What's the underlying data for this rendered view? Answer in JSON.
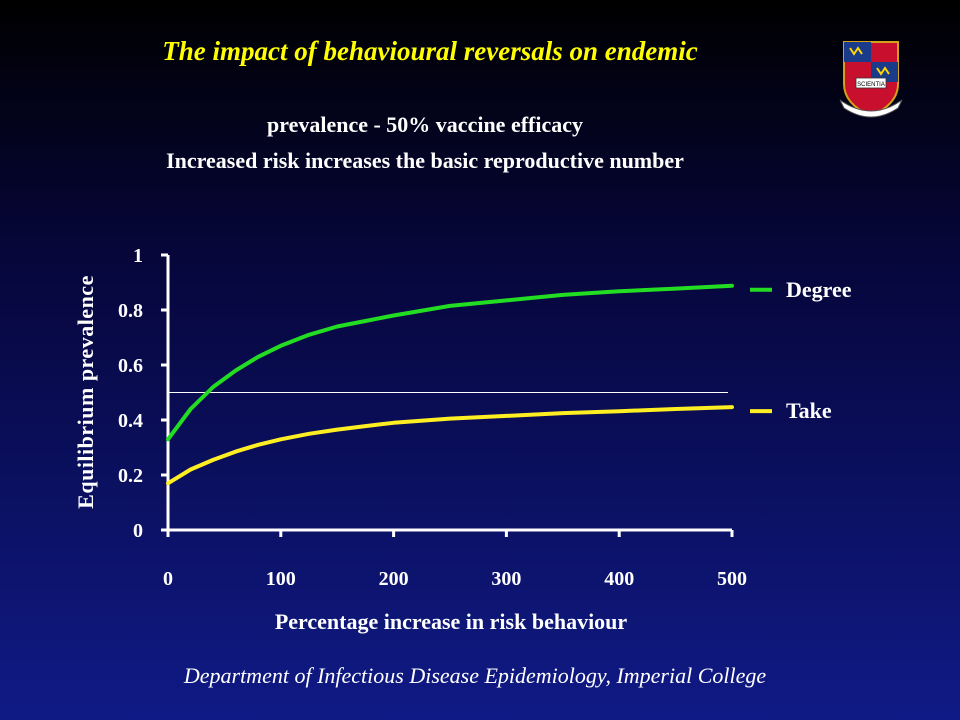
{
  "title": "The impact of behavioural reversals on endemic",
  "subtitle_line1": "prevalence - 50% vaccine efficacy",
  "subtitle_line2": "Increased risk increases the basic reproductive number",
  "footer": "Department of Infectious Disease Epidemiology, Imperial College",
  "crest_icon": "imperial-college-crest",
  "crest_motto": "SCIENTIA",
  "colors": {
    "title": "#ffff00",
    "degree": "#22dd22",
    "take": "#ffee22",
    "text": "#ffffff"
  },
  "chart_data": {
    "type": "line",
    "title": "",
    "xlabel": "Percentage increase in risk behaviour",
    "ylabel": "Equilibrium prevalence",
    "xlim": [
      0,
      500
    ],
    "ylim": [
      0,
      1
    ],
    "xticks": [
      "0",
      "100",
      "200",
      "300",
      "400",
      "500"
    ],
    "yticks": [
      "0",
      "0.2",
      "0.4",
      "0.6",
      "0.8",
      "1"
    ],
    "legend_placement": "right",
    "reference_line": {
      "y": 0.5
    },
    "x": [
      0,
      20,
      40,
      60,
      80,
      100,
      125,
      150,
      175,
      200,
      250,
      300,
      350,
      400,
      450,
      500
    ],
    "series": [
      {
        "name": "Degree",
        "color": "#22dd22",
        "values": [
          0.33,
          0.44,
          0.52,
          0.58,
          0.63,
          0.67,
          0.71,
          0.74,
          0.76,
          0.78,
          0.815,
          0.835,
          0.855,
          0.868,
          0.878,
          0.888
        ]
      },
      {
        "name": "Take",
        "color": "#ffee22",
        "values": [
          0.17,
          0.22,
          0.255,
          0.285,
          0.31,
          0.33,
          0.35,
          0.365,
          0.378,
          0.39,
          0.405,
          0.415,
          0.425,
          0.432,
          0.44,
          0.447
        ]
      }
    ]
  }
}
